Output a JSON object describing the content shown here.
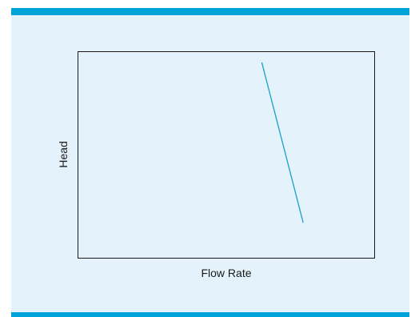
{
  "colors": {
    "band": "#00a3d9",
    "panel_background": "#e3f2fb",
    "plot_border": "#1a1a1a",
    "series_line": "#1aa0c8"
  },
  "chart_data": {
    "type": "line",
    "title": "",
    "xlabel": "Flow Rate",
    "ylabel": "Head",
    "xlim": [
      0,
      10
    ],
    "ylim": [
      0,
      10
    ],
    "grid": false,
    "show_ticks": false,
    "series": [
      {
        "x": [
          6.2,
          7.6
        ],
        "y": [
          9.5,
          1.7
        ]
      }
    ]
  }
}
